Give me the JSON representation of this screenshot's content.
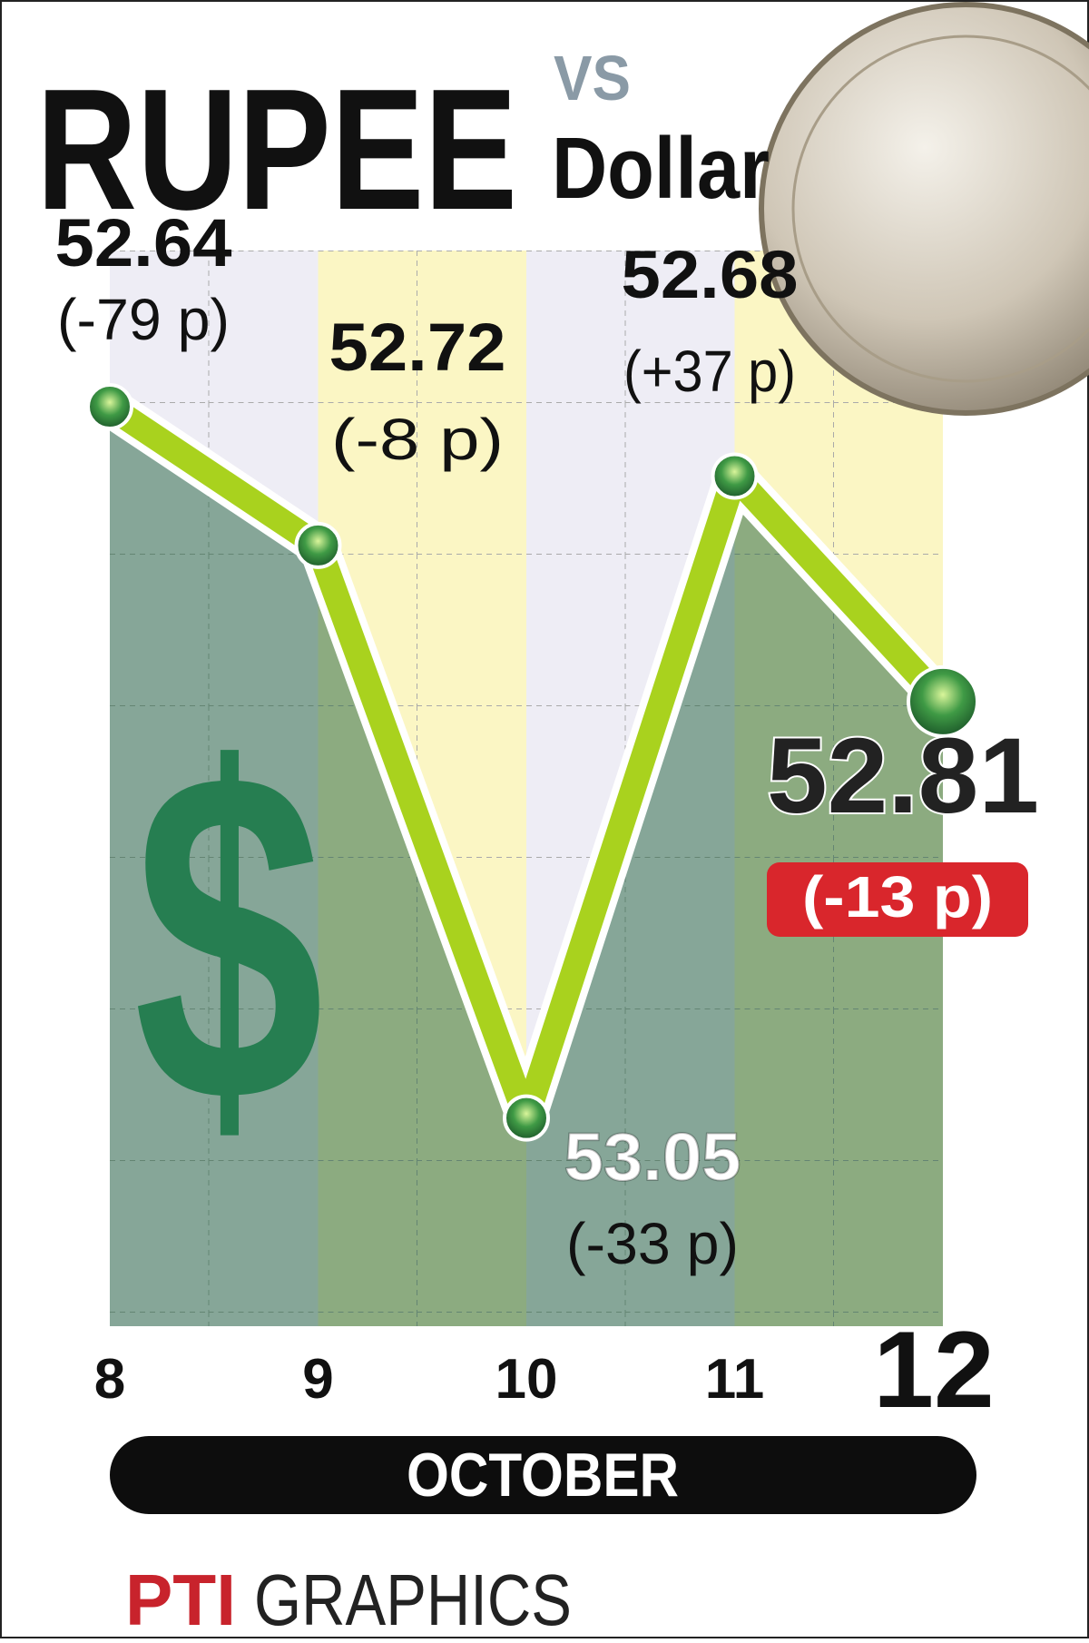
{
  "chart_data": {
    "type": "line",
    "title": "RUPEE",
    "title_vs": "VS",
    "subtitle": "Dollar",
    "categories": [
      "8",
      "9",
      "10",
      "11",
      "12"
    ],
    "values": [
      52.64,
      52.72,
      53.05,
      52.68,
      52.81
    ],
    "changes": [
      "(-79 p)",
      "(-8 p)",
      "(-33 p)",
      "(+37 p)",
      "(-13 p)"
    ],
    "ylim": [
      52.55,
      53.17
    ],
    "y_inverted": true,
    "color": "#a9d21e",
    "x_label": "OCTOBER",
    "symbol": "$",
    "source_logo": "PTI",
    "source": "GRAPHICS"
  }
}
